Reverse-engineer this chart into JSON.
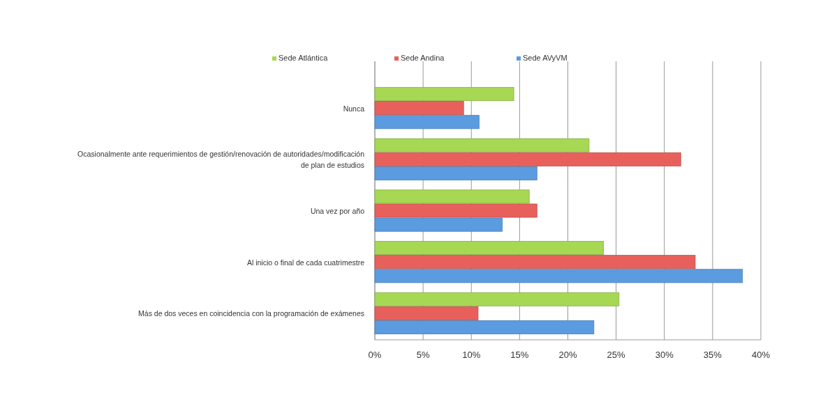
{
  "chart_data": {
    "type": "bar",
    "orientation": "horizontal",
    "categories": [
      "Nunca",
      "Ocasionalmente ante requerimientos de gestión/renovación de autoridades/modificación de plan de estudios",
      "Una vez por año",
      "Al inicio o final de cada cuatrimestre",
      "Más de dos veces en coincidencia con la programación de exámenes"
    ],
    "series": [
      {
        "name": "Sede Atlántica",
        "color": "#a6d854",
        "values": [
          14.4,
          22.2,
          16.0,
          23.7,
          25.3
        ]
      },
      {
        "name": "Sede Andina",
        "color": "#e8605c",
        "values": [
          9.2,
          31.7,
          16.8,
          33.2,
          10.7
        ]
      },
      {
        "name": "Sede AVyVM",
        "color": "#5b9be0",
        "values": [
          10.8,
          16.8,
          13.2,
          38.1,
          22.7
        ]
      }
    ],
    "xlim": [
      0,
      40
    ],
    "xticks": [
      {
        "value": 0,
        "label": "0%"
      },
      {
        "value": 5,
        "label": "5%"
      },
      {
        "value": 10,
        "label": "10%"
      },
      {
        "value": 15,
        "label": "15%"
      },
      {
        "value": 20,
        "label": "20%"
      },
      {
        "value": 25,
        "label": "25%"
      },
      {
        "value": 30,
        "label": "30%"
      },
      {
        "value": 35,
        "label": "35%"
      },
      {
        "value": 40,
        "label": "40%"
      }
    ],
    "grid": "x",
    "legend": "top"
  }
}
